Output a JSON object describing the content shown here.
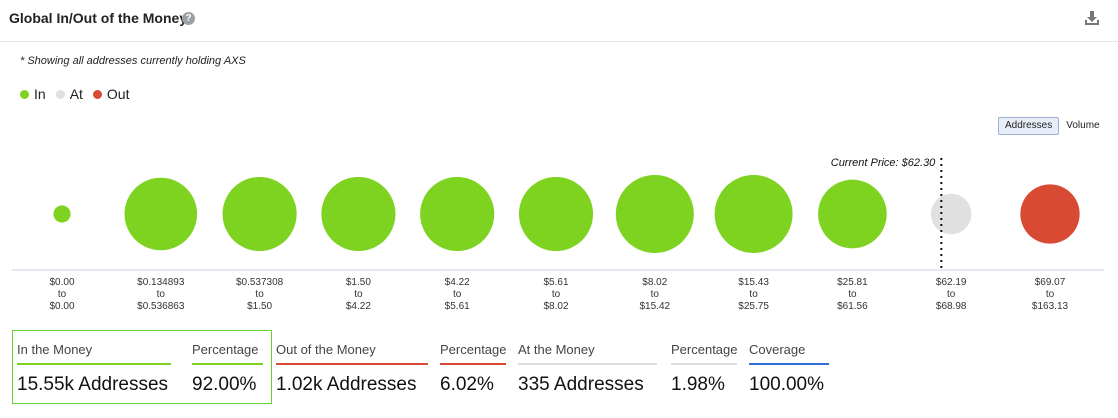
{
  "header": {
    "title": "Global In/Out of the Money",
    "help": "?"
  },
  "note": "* Showing all addresses currently holding AXS",
  "legend": [
    {
      "label": "In",
      "color": "#7ed321"
    },
    {
      "label": "At",
      "color": "#e0e0e0"
    },
    {
      "label": "Out",
      "color": "#d94a35"
    }
  ],
  "toggle": {
    "addresses": "Addresses",
    "volume": "Volume"
  },
  "chart_data": {
    "type": "bubble",
    "current_price_label": "Current Price: $62.30",
    "current_price_after_bucket": 8,
    "colors": {
      "in": "#7ed321",
      "at": "#e0e0e0",
      "out": "#d94a35"
    },
    "buckets": [
      {
        "from": "$0.00",
        "to": "$0.00",
        "status": "in",
        "relative_size": 0.22
      },
      {
        "from": "$0.134893",
        "to": "$0.536863",
        "status": "in",
        "relative_size": 0.93
      },
      {
        "from": "$0.537308",
        "to": "$1.50",
        "status": "in",
        "relative_size": 0.95
      },
      {
        "from": "$1.50",
        "to": "$4.22",
        "status": "in",
        "relative_size": 0.95
      },
      {
        "from": "$4.22",
        "to": "$5.61",
        "status": "in",
        "relative_size": 0.95
      },
      {
        "from": "$5.61",
        "to": "$8.02",
        "status": "in",
        "relative_size": 0.95
      },
      {
        "from": "$8.02",
        "to": "$15.42",
        "status": "in",
        "relative_size": 1.0
      },
      {
        "from": "$15.43",
        "to": "$25.75",
        "status": "in",
        "relative_size": 1.0
      },
      {
        "from": "$25.81",
        "to": "$61.56",
        "status": "in",
        "relative_size": 0.88
      },
      {
        "from": "$62.19",
        "to": "$68.98",
        "status": "at",
        "relative_size": 0.52
      },
      {
        "from": "$69.07",
        "to": "$163.13",
        "status": "out",
        "relative_size": 0.76
      }
    ],
    "to_word": "to"
  },
  "stats": [
    {
      "label": "In the Money",
      "value": "15.55k Addresses",
      "color": "#7ed321"
    },
    {
      "label": "Percentage",
      "value": "92.00%",
      "color": "#7ed321"
    },
    {
      "label": "Out of the Money",
      "value": "1.02k Addresses",
      "color": "#d94a35"
    },
    {
      "label": "Percentage",
      "value": "6.02%",
      "color": "#d94a35"
    },
    {
      "label": "At the Money",
      "value": "335 Addresses",
      "color": "#dddddd"
    },
    {
      "label": "Percentage",
      "value": "1.98%",
      "color": "#dddddd"
    },
    {
      "label": "Coverage",
      "value": "100.00%",
      "color": "#2f6fd6"
    }
  ]
}
